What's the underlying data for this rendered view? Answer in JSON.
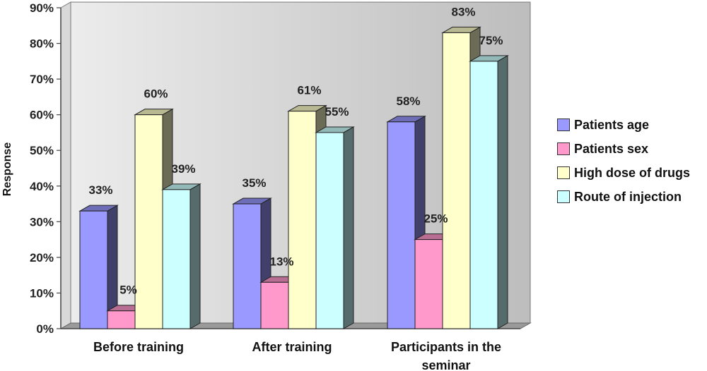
{
  "chart_data": {
    "type": "bar",
    "ylabel": "Response",
    "ylim": [
      0,
      90
    ],
    "y_ticks": [
      "0%",
      "10%",
      "20%",
      "30%",
      "40%",
      "50%",
      "60%",
      "70%",
      "80%",
      "90%"
    ],
    "categories": [
      "Before training",
      "After training",
      "Participants in the seminar"
    ],
    "series": [
      {
        "name": "Patients age",
        "values": [
          33,
          35,
          58
        ],
        "labels": [
          "33%",
          "35%",
          "58%"
        ],
        "color": "#9999ff"
      },
      {
        "name": "Patients sex",
        "values": [
          5,
          13,
          25
        ],
        "labels": [
          "5%",
          "13%",
          "25%"
        ],
        "color": "#ff99cc"
      },
      {
        "name": "High dose of drugs",
        "values": [
          60,
          61,
          83
        ],
        "labels": [
          "60%",
          "61%",
          "83%"
        ],
        "color": "#ffffcc"
      },
      {
        "name": "Route of injection",
        "values": [
          39,
          55,
          75
        ],
        "labels": [
          "39%",
          "55%",
          "75%"
        ],
        "color": "#ccffff"
      }
    ],
    "legend_position": "right",
    "grid": false
  }
}
